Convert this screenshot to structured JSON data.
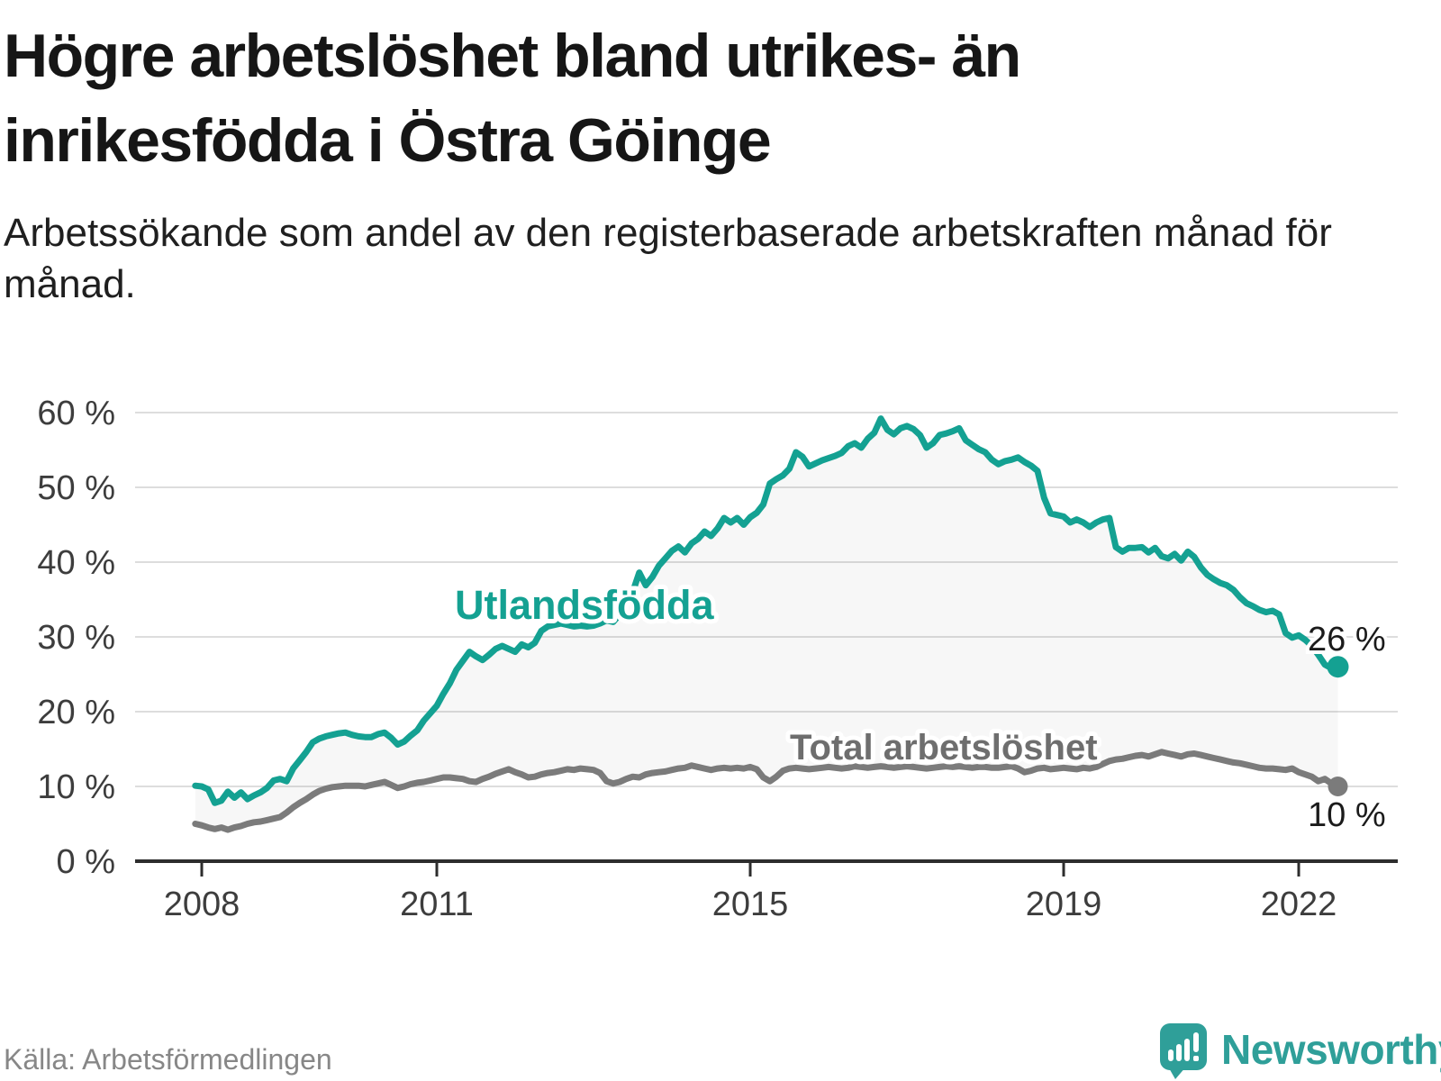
{
  "header": {
    "title_line1": "Högre arbetslöshet bland utrikes- än",
    "title_line2": "inrikesfödda i Östra Göinge",
    "subtitle": "Arbetssökande som andel av den registerbaserade arbetskraften månad för månad."
  },
  "footer": {
    "source": "Källa: Arbetsförmedlingen",
    "brand_name": "Newsworthy",
    "brand_icon": "newsworthy-speech-bubble-bar-chart-icon"
  },
  "colors": {
    "foreign_born_line": "#14a192",
    "total_line": "#7b7b7b",
    "total_label_text": "#6e6e6e",
    "fill_between": "rgba(70,70,70,0.045)",
    "gridline": "#dddddd",
    "axis": "#2d2d2d",
    "tick_text": "#3d3d3d",
    "end_label_text": "#1b1b1b",
    "brand_teal": "#2f9f99"
  },
  "chart_data": {
    "type": "line",
    "title": "Högre arbetslöshet bland utrikes- än inrikesfödda i Östra Göinge",
    "subtitle": "Arbetssökande som andel av den registerbaserade arbetskraften månad för månad.",
    "frequency": "monthly",
    "x_start": "2007-12",
    "x_end": "2022-06",
    "grid": "horizontal",
    "legend_position": "inline-labels",
    "fill_between_series": true,
    "x_axis": {
      "tick_labels": [
        "2008",
        "2011",
        "2015",
        "2019",
        "2022"
      ],
      "tick_values": [
        2008,
        2011,
        2015,
        2019,
        2022
      ]
    },
    "y_axis": {
      "tick_labels": [
        "0 %",
        "10 %",
        "20 %",
        "30 %",
        "40 %",
        "50 %",
        "60 %"
      ],
      "tick_values": [
        0,
        10,
        20,
        30,
        40,
        50,
        60
      ],
      "ylim": [
        0,
        62
      ]
    },
    "series": [
      {
        "name": "Utlandsfödda",
        "color": "#14a192",
        "end_label": "26 %",
        "end_value": 26,
        "values": [
          10.1,
          10.0,
          9.6,
          7.8,
          8.1,
          9.3,
          8.5,
          9.2,
          8.3,
          8.8,
          9.2,
          9.8,
          10.8,
          11.0,
          10.7,
          12.4,
          13.5,
          14.6,
          15.9,
          16.4,
          16.7,
          16.9,
          17.1,
          17.2,
          16.9,
          16.7,
          16.6,
          16.6,
          17.0,
          17.2,
          16.5,
          15.6,
          16.0,
          16.8,
          17.5,
          18.8,
          19.8,
          20.8,
          22.4,
          23.8,
          25.6,
          26.8,
          28.0,
          27.4,
          26.9,
          27.6,
          28.4,
          28.8,
          28.4,
          28.0,
          29.0,
          28.6,
          29.2,
          30.8,
          31.4,
          31.6,
          31.8,
          31.6,
          31.4,
          31.5,
          31.4,
          31.5,
          31.8,
          32.2,
          32.0,
          33.0,
          34.5,
          36.0,
          38.6,
          36.9,
          38.0,
          39.5,
          40.5,
          41.5,
          42.1,
          41.3,
          42.5,
          43.1,
          44.1,
          43.5,
          44.5,
          45.9,
          45.3,
          45.9,
          45.0,
          46.0,
          46.6,
          47.7,
          50.5,
          51.1,
          51.6,
          52.5,
          54.7,
          54.1,
          52.8,
          53.2,
          53.6,
          53.9,
          54.2,
          54.6,
          55.5,
          55.9,
          55.3,
          56.5,
          57.3,
          59.2,
          57.7,
          57.1,
          57.9,
          58.2,
          57.8,
          57.0,
          55.3,
          55.9,
          57.0,
          57.2,
          57.5,
          57.9,
          56.3,
          55.7,
          55.1,
          54.7,
          53.7,
          53.1,
          53.5,
          53.7,
          54.0,
          53.4,
          52.9,
          52.2,
          48.6,
          46.5,
          46.3,
          46.1,
          45.3,
          45.7,
          45.3,
          44.7,
          45.3,
          45.7,
          45.9,
          42.0,
          41.4,
          41.9,
          41.9,
          42.0,
          41.3,
          41.9,
          40.8,
          40.5,
          41.1,
          40.2,
          41.4,
          40.7,
          39.3,
          38.3,
          37.7,
          37.2,
          36.9,
          36.3,
          35.3,
          34.5,
          34.1,
          33.6,
          33.3,
          33.5,
          33.0,
          30.5,
          29.9,
          30.2,
          29.6,
          28.8,
          27.6,
          26.3,
          25.8,
          26.0
        ]
      },
      {
        "name": "Total arbetslöshet",
        "color": "#7b7b7b",
        "end_label": "10 %",
        "end_value": 10,
        "values": [
          5.0,
          4.8,
          4.5,
          4.3,
          4.5,
          4.2,
          4.5,
          4.7,
          5.0,
          5.2,
          5.3,
          5.5,
          5.7,
          5.9,
          6.5,
          7.2,
          7.8,
          8.3,
          8.9,
          9.4,
          9.7,
          9.9,
          10.0,
          10.1,
          10.1,
          10.1,
          10.0,
          10.2,
          10.4,
          10.6,
          10.2,
          9.8,
          10.0,
          10.3,
          10.5,
          10.6,
          10.8,
          11.0,
          11.2,
          11.2,
          11.1,
          11.0,
          10.7,
          10.6,
          11.0,
          11.3,
          11.7,
          12.0,
          12.3,
          11.9,
          11.6,
          11.2,
          11.3,
          11.6,
          11.8,
          11.9,
          12.1,
          12.3,
          12.2,
          12.4,
          12.3,
          12.2,
          11.8,
          10.7,
          10.4,
          10.6,
          11.0,
          11.3,
          11.2,
          11.6,
          11.8,
          11.9,
          12.0,
          12.2,
          12.4,
          12.5,
          12.8,
          12.6,
          12.4,
          12.2,
          12.4,
          12.5,
          12.4,
          12.5,
          12.4,
          12.6,
          12.3,
          11.2,
          10.7,
          11.3,
          12.1,
          12.4,
          12.5,
          12.4,
          12.3,
          12.4,
          12.5,
          12.6,
          12.5,
          12.4,
          12.5,
          12.7,
          12.6,
          12.5,
          12.6,
          12.7,
          12.6,
          12.5,
          12.6,
          12.7,
          12.6,
          12.5,
          12.4,
          12.5,
          12.6,
          12.7,
          12.6,
          12.7,
          12.6,
          12.5,
          12.6,
          12.6,
          12.5,
          12.5,
          12.6,
          12.7,
          12.4,
          11.9,
          12.1,
          12.4,
          12.5,
          12.3,
          12.4,
          12.5,
          12.4,
          12.3,
          12.5,
          12.4,
          12.6,
          13.0,
          13.4,
          13.6,
          13.7,
          13.9,
          14.1,
          14.2,
          14.0,
          14.3,
          14.6,
          14.4,
          14.2,
          14.0,
          14.3,
          14.4,
          14.2,
          14.0,
          13.8,
          13.6,
          13.4,
          13.2,
          13.1,
          12.9,
          12.7,
          12.5,
          12.4,
          12.4,
          12.3,
          12.2,
          12.4,
          11.9,
          11.6,
          11.3,
          10.7,
          11.0,
          10.4,
          10.0
        ]
      }
    ]
  }
}
